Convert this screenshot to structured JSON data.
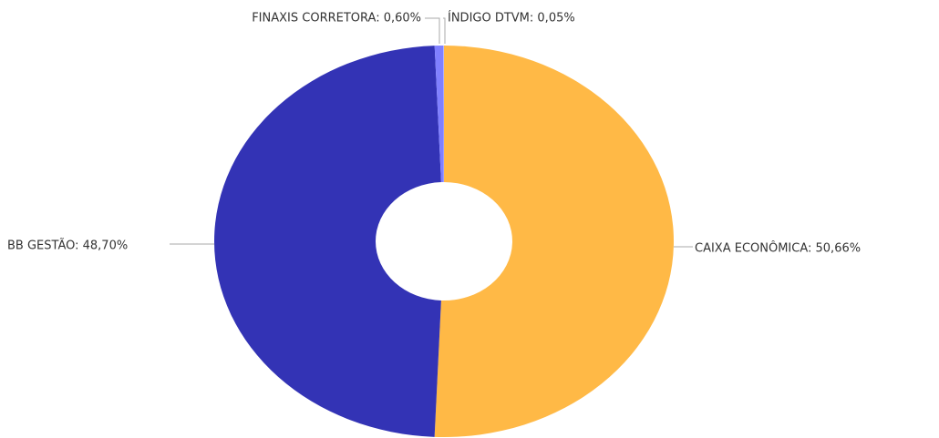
{
  "chart_data": {
    "type": "donut",
    "labels": [
      "CAIXA ECONÔMICA: 50,66%",
      "BB GESTÃO: 48,70%",
      "FINAXIS CORRETORA: 0,60%",
      "ÍNDIGO DTVM: 0,05%"
    ],
    "values": [
      50.66,
      48.7,
      0.6,
      0.05
    ],
    "colors": [
      "#ffb946",
      "#3333b5",
      "#8080ff",
      "#b0b0ff"
    ]
  }
}
